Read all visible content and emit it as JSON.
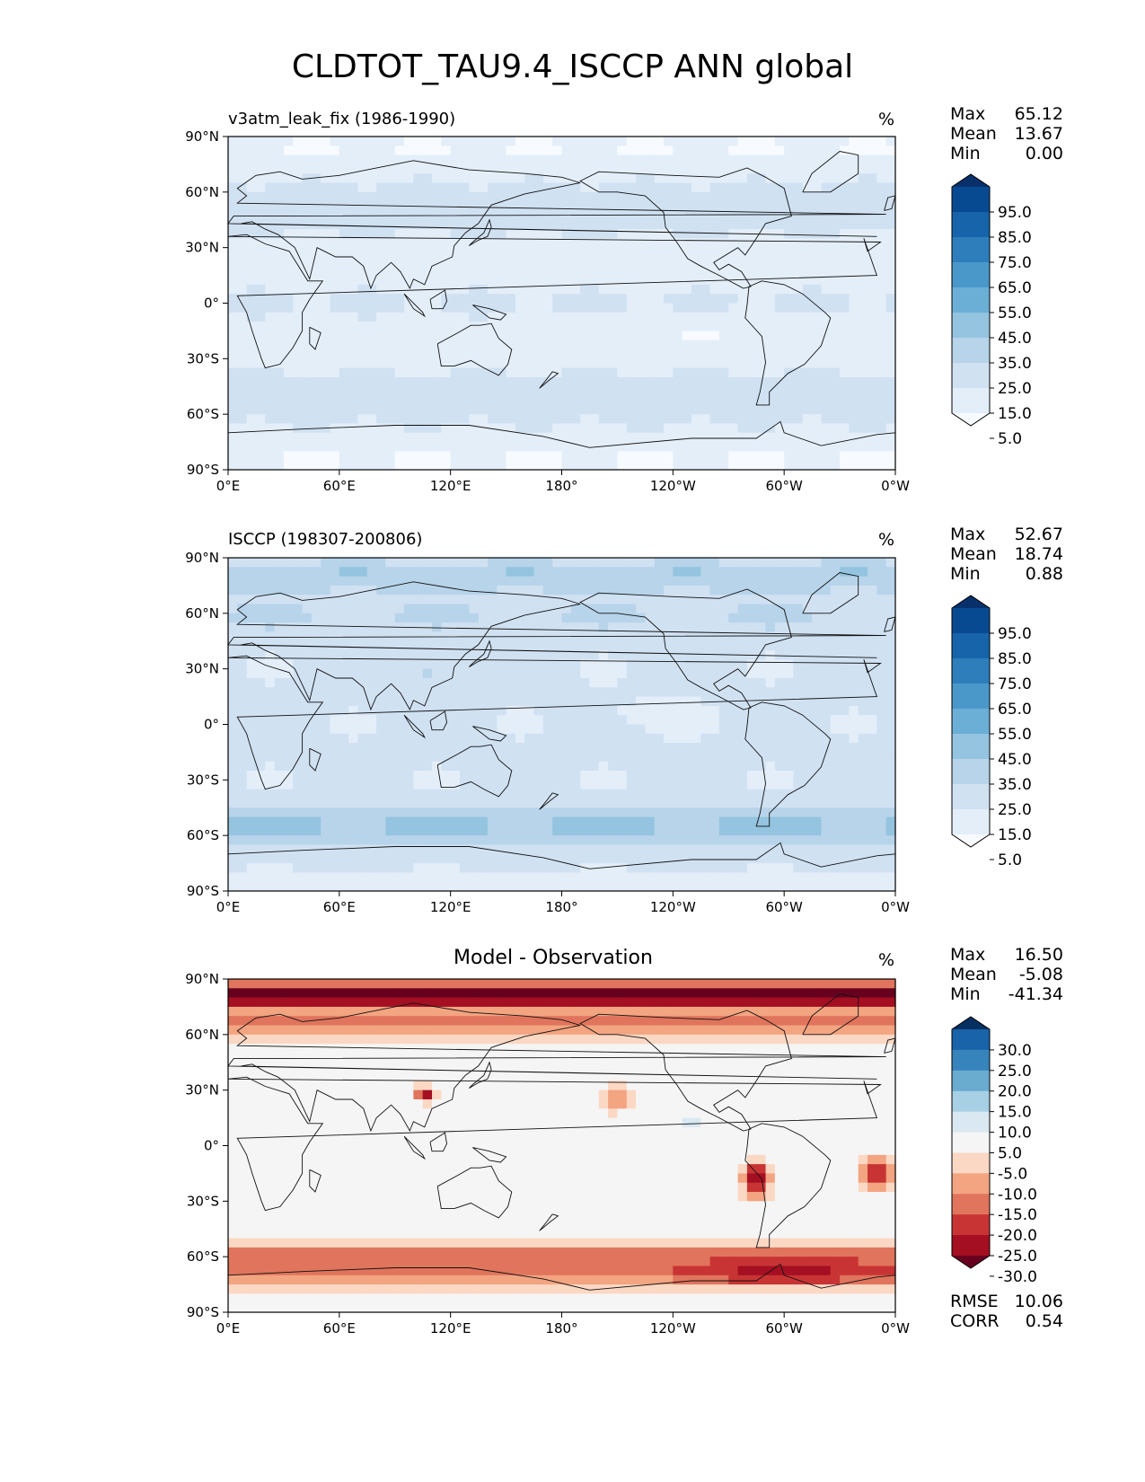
{
  "figure_title": "CLDTOT_TAU9.4_ISCCP ANN global",
  "lat_ticks": [
    "90°N",
    "60°N",
    "30°N",
    "0°",
    "30°S",
    "60°S",
    "90°S"
  ],
  "lon_ticks": [
    "0°E",
    "60°E",
    "120°E",
    "180°",
    "120°W",
    "60°W",
    "0°W"
  ],
  "colors": {
    "seq_blues": [
      "#f7fbff",
      "#e3eef9",
      "#d0e1f2",
      "#b7d4ea",
      "#94c4df",
      "#6baed6",
      "#4a98c9",
      "#2e7ebc",
      "#1764ab",
      "#084a91",
      "#08306b"
    ],
    "div": [
      "#67001f",
      "#a50f22",
      "#c83434",
      "#e0745c",
      "#f3a481",
      "#fbd8c4",
      "#f5f5f5",
      "#d9e8f1",
      "#a7d0e4",
      "#6aabd0",
      "#3783bb",
      "#1963a8",
      "#053061"
    ]
  },
  "chart_data": [
    {
      "type": "heatmap",
      "panel": "test",
      "title": "v3atm_leak_fix (1986-1990)",
      "units": "%",
      "stats": {
        "Max": "65.12",
        "Mean": "13.67",
        "Min": "0.00"
      },
      "colorbar_levels": [
        "95.0",
        "85.0",
        "75.0",
        "65.0",
        "55.0",
        "45.0",
        "35.0",
        "25.0",
        "15.0",
        "5.0"
      ],
      "xlim": [
        0,
        360
      ],
      "ylim": [
        -90,
        90
      ]
    },
    {
      "type": "heatmap",
      "panel": "reference",
      "title": "ISCCP (198307-200806)",
      "units": "%",
      "stats": {
        "Max": "52.67",
        "Mean": "18.74",
        "Min": "0.88"
      },
      "colorbar_levels": [
        "95.0",
        "85.0",
        "75.0",
        "65.0",
        "55.0",
        "45.0",
        "35.0",
        "25.0",
        "15.0",
        "5.0"
      ],
      "xlim": [
        0,
        360
      ],
      "ylim": [
        -90,
        90
      ]
    },
    {
      "type": "heatmap",
      "panel": "difference",
      "title": "Model - Observation",
      "units": "%",
      "stats": {
        "Max": "16.50",
        "Mean": "-5.08",
        "Min": "-41.34"
      },
      "colorbar_levels": [
        "30.0",
        "25.0",
        "20.0",
        "15.0",
        "10.0",
        "5.0",
        "-5.0",
        "-10.0",
        "-15.0",
        "-20.0",
        "-25.0",
        "-30.0"
      ],
      "metrics": {
        "RMSE": "10.06",
        "CORR": "0.54"
      },
      "xlim": [
        0,
        360
      ],
      "ylim": [
        -90,
        90
      ]
    }
  ]
}
